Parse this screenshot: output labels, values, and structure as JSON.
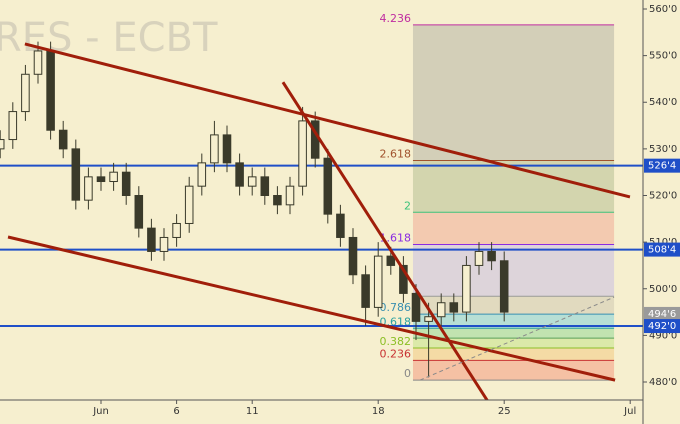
{
  "chart_data": {
    "type": "candlestick",
    "watermark": "RES - ECBT",
    "x": [
      -4,
      -3.5,
      -3,
      -2.5,
      -2,
      -1.5,
      -1,
      -0.5,
      0,
      0.5,
      1,
      1.5,
      2,
      2.5,
      3,
      3.5,
      4,
      4.5,
      5,
      5.5,
      6,
      6.5,
      7,
      7.5,
      8,
      8.5,
      9,
      9.5,
      10,
      10.5,
      11,
      11.5,
      12,
      12.5,
      13,
      13.5,
      14,
      14.5,
      15,
      15.5,
      16
    ],
    "open": [
      530,
      532,
      538,
      546,
      551,
      534,
      530,
      519,
      524,
      523,
      525,
      520,
      513,
      508,
      511,
      514,
      522,
      527,
      533,
      527,
      522,
      524,
      520,
      518,
      522,
      536,
      528,
      516,
      511,
      503,
      496,
      507,
      505,
      499,
      493,
      494,
      497,
      495,
      505,
      508,
      506
    ],
    "high": [
      534,
      540,
      548,
      553,
      553,
      536,
      532,
      526,
      526,
      527,
      527,
      522,
      515,
      513,
      516,
      524,
      529,
      536,
      535,
      529,
      526,
      526,
      522,
      524,
      539,
      538,
      530,
      518,
      513,
      505,
      510,
      509,
      507,
      501,
      497,
      499,
      499,
      507,
      510,
      510,
      508
    ],
    "low": [
      528,
      530,
      536,
      544,
      532,
      528,
      517,
      517,
      521,
      521,
      518,
      511,
      506,
      506,
      509,
      512,
      520,
      525,
      525,
      520,
      520,
      518,
      516,
      516,
      520,
      526,
      514,
      509,
      501,
      492,
      494,
      503,
      497,
      489,
      481,
      492,
      493,
      493,
      503,
      504,
      493
    ],
    "close": [
      532,
      538,
      546,
      551,
      534,
      530,
      519,
      524,
      523,
      525,
      520,
      513,
      508,
      511,
      514,
      522,
      527,
      533,
      527,
      522,
      524,
      520,
      518,
      522,
      536,
      528,
      516,
      511,
      503,
      496,
      507,
      505,
      499,
      493,
      494,
      497,
      495,
      505,
      508,
      506,
      495
    ],
    "candle_color": "#3a3a2a",
    "xlim": [
      -4.008,
      21.508
    ],
    "xticks": [
      {
        "value": 0,
        "label": "Jun"
      },
      {
        "value": 3,
        "label": "6"
      },
      {
        "value": 6,
        "label": "11"
      },
      {
        "value": 11,
        "label": "18"
      },
      {
        "value": 16,
        "label": "25"
      },
      {
        "value": 21,
        "label": "Jul"
      }
    ],
    "ylim": [
      476.14,
      561.93
    ],
    "yticks": [
      {
        "value": 480,
        "label": "480'0"
      },
      {
        "value": 490,
        "label": "490'0"
      },
      {
        "value": 500,
        "label": "500'0"
      },
      {
        "value": 510,
        "label": "510'0"
      },
      {
        "value": 520,
        "label": "520'0"
      },
      {
        "value": 530,
        "label": "530'0"
      },
      {
        "value": 540,
        "label": "540'0"
      },
      {
        "value": 550,
        "label": "550'0"
      },
      {
        "value": 560,
        "label": "560'0"
      }
    ],
    "hlines": [
      {
        "value": 526.4,
        "label": "526'4",
        "color": "#1f4fc8",
        "line": true
      },
      {
        "value": 508.4,
        "label": "508'4",
        "color": "#1f4fc8",
        "line": true
      },
      {
        "value": 494.6,
        "label": "494'6",
        "color": "#9a9a9a",
        "line": false
      },
      {
        "value": 492.0,
        "label": "492'0",
        "color": "#1f4fc8",
        "line": true
      }
    ],
    "trendlines": [
      {
        "x": [
          -3.02,
          20.99
        ],
        "y": [
          552.5,
          519.7
        ],
        "color": "#a01e0a",
        "dash": false
      },
      {
        "x": [
          -3.69,
          20.4
        ],
        "y": [
          511.1,
          480.4
        ],
        "color": "#a01e0a",
        "dash": false
      },
      {
        "x": [
          7.22,
          15.44
        ],
        "y": [
          544.3,
          475.1
        ],
        "color": "#a01e0a",
        "dash": false
      },
      {
        "x": [
          12.66,
          20.36
        ],
        "y": [
          480.4,
          498.2
        ],
        "color": "#8a8a8a",
        "dash": true
      }
    ],
    "fib": {
      "x": [
        12.38,
        20.36
      ],
      "levels": [
        {
          "value": 480.4,
          "label": "0",
          "color": "#888888",
          "fill": "#f4b99c"
        },
        {
          "value": 484.65,
          "label": "0.236",
          "color": "#c83232",
          "fill": "#f3d79e"
        },
        {
          "value": 487.28,
          "label": "0.382",
          "color": "#8cbf26",
          "fill": "#d6e8a2"
        },
        {
          "value": 489.4,
          "label": null,
          "color": "#5aa05a",
          "fill": "#b7e1aa"
        },
        {
          "value": 491.52,
          "label": "0.618",
          "color": "#2aa0a0",
          "fill": "#abdcd6"
        },
        {
          "value": 494.55,
          "label": "0.786",
          "color": "#3a8fb0",
          "fill": "#ddd6bc"
        },
        {
          "value": 498.4,
          "label": null,
          "color": "#999999",
          "fill": "#d8cfdc"
        },
        {
          "value": 509.5,
          "label": "1.618",
          "color": "#8a2be2",
          "fill": "#f2c3aa"
        },
        {
          "value": 516.4,
          "label": "2",
          "color": "#3cc37a",
          "fill": "#ccd0a8"
        },
        {
          "value": 527.5,
          "label": "2.618",
          "color": "#a0522d",
          "fill": "#ccc9b4"
        },
        {
          "value": 556.6,
          "label": "4.236",
          "color": "#c02ca0"
        }
      ]
    }
  }
}
